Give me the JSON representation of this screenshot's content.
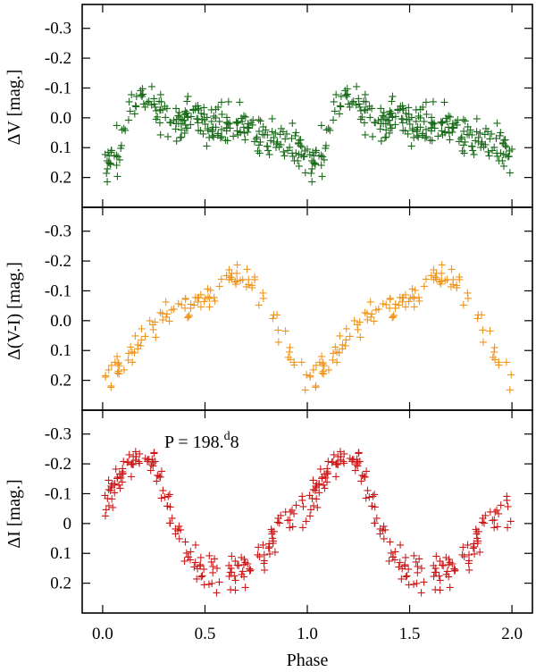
{
  "chart_data": {
    "type": "scatter",
    "xlabel": "Phase",
    "xlim": [
      -0.1,
      2.1
    ],
    "x_ticks": [
      0.0,
      0.5,
      1.0,
      1.5,
      2.0
    ],
    "x_tick_labels": [
      "0.0",
      "0.5",
      "1.0",
      "1.5",
      "2.0"
    ],
    "annotation": {
      "prefix": "P = 198.",
      "superscript": "d",
      "suffix": "8"
    },
    "panels": [
      {
        "name": "V",
        "ylabel": "ΔV [mag.]",
        "ylim": [
          0.3,
          -0.38
        ],
        "y_ticks": [
          -0.3,
          -0.2,
          -0.1,
          0.0,
          0.1,
          0.2
        ],
        "y_tick_labels": [
          "-0.3",
          "-0.2",
          "-0.1",
          "0.0",
          "0.1",
          "0.2"
        ],
        "color": "#1a6b1a",
        "marker": "+",
        "model": {
          "coef": [
            [
              0.12,
              -0.1
            ],
            [
              0.1,
              -0.05
            ],
            [
              0.06,
              0.04
            ],
            [
              0.02,
              0.08
            ]
          ],
          "scale": 0.35,
          "const": 0.03,
          "scatter": 0.045,
          "n": 240,
          "seed": 11
        }
      },
      {
        "name": "V-I",
        "ylabel": "Δ(V-I) [mag.]",
        "ylim": [
          0.3,
          -0.38
        ],
        "y_ticks": [
          -0.3,
          -0.2,
          -0.1,
          0.0,
          0.1,
          0.2
        ],
        "y_tick_labels": [
          "-0.3",
          "-0.2",
          "-0.1",
          "0.0",
          "0.1",
          "0.2"
        ],
        "color": "#f0961e",
        "marker": "+",
        "model": {
          "coef": [
            [
              0.13,
              0.06
            ],
            [
              0.05,
              -0.01
            ]
          ],
          "scale": 1.0,
          "const": 0.0,
          "scatter": 0.035,
          "n": 110,
          "seed": 23
        }
      },
      {
        "name": "I",
        "ylabel": "ΔI [mag.]",
        "ylim": [
          0.3,
          -0.38
        ],
        "y_ticks": [
          -0.3,
          -0.2,
          -0.1,
          0,
          0.1,
          0.2
        ],
        "y_tick_labels": [
          "-0.3",
          "-0.2",
          "-0.1",
          "0",
          "0.1",
          "0.2"
        ],
        "color": "#cc1a1a",
        "marker": "+",
        "model": {
          "coef": [
            [
              -0.12,
              -0.14
            ],
            [
              0.04,
              -0.02
            ],
            [
              0.02,
              0.02
            ]
          ],
          "scale": 1.0,
          "const": 0.0,
          "scatter": 0.04,
          "n": 170,
          "seed": 37
        }
      }
    ]
  }
}
